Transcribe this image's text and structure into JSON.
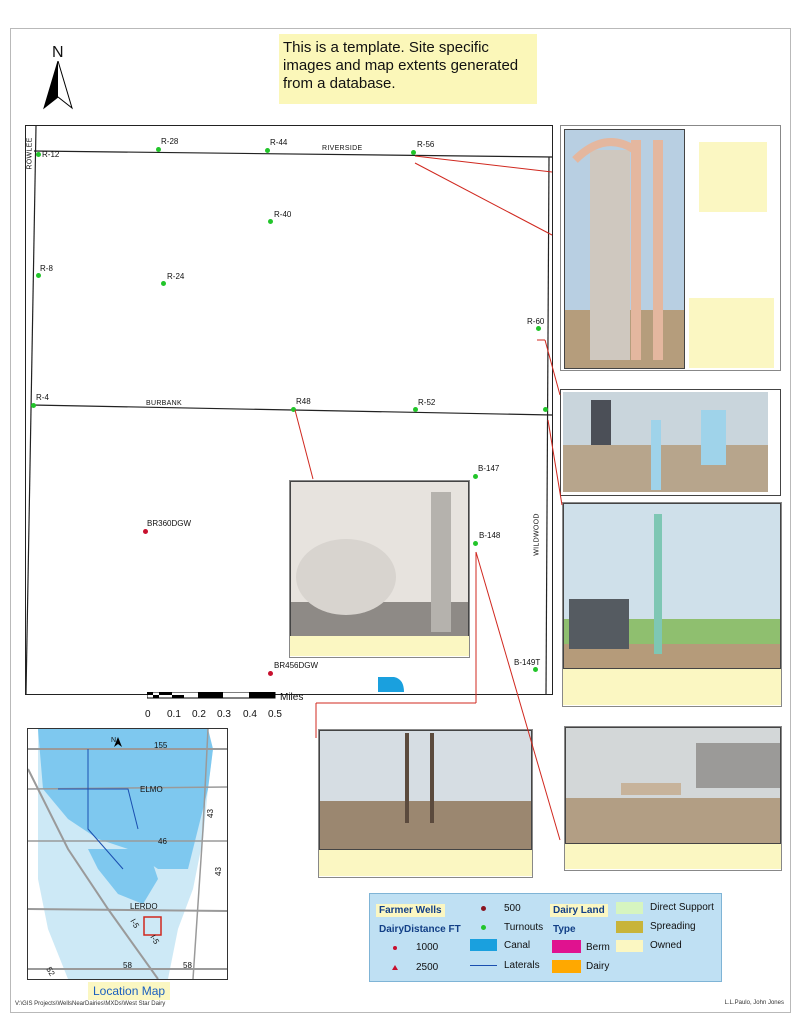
{
  "note": {
    "text": "This is a template. Site specific images and map extents generated from a database."
  },
  "north_arrow": {
    "letter": "N"
  },
  "roads": {
    "riverside": "RIVERSIDE",
    "burbank": "BURBANK",
    "rowlee": "ROWLEE",
    "wildwood": "WILDWOOD"
  },
  "wells": [
    {
      "id": "R-12"
    },
    {
      "id": "R-28"
    },
    {
      "id": "R-44"
    },
    {
      "id": "R-56"
    },
    {
      "id": "R-40"
    },
    {
      "id": "R-8"
    },
    {
      "id": "R-24"
    },
    {
      "id": "R-60"
    },
    {
      "id": "R-4"
    },
    {
      "id": "R48"
    },
    {
      "id": "R-52"
    },
    {
      "id": "B-147"
    },
    {
      "id": "B-148"
    },
    {
      "id": "B-149T"
    },
    {
      "id": "BR360DGW"
    },
    {
      "id": "BR456DGW"
    }
  ],
  "scale": {
    "ticks": [
      "0",
      "0.1",
      "0.2",
      "0.3",
      "0.4",
      "0.5"
    ],
    "unit": "Miles"
  },
  "location_map": {
    "title": "Location Map",
    "north": "N",
    "labels": {
      "r155": "155",
      "elmo": "ELMO",
      "r43a": "43",
      "r46": "46",
      "r43b": "43",
      "lerdo": "LERDO",
      "i5a": "I-5",
      "i5b": "I-5",
      "r58a": "58",
      "r58b": "58",
      "r52": "52"
    }
  },
  "legend": {
    "farmer_wells": "Farmer Wells",
    "dairy_distance": "DairyDistance FT",
    "d1000": "1000",
    "d2500": "2500",
    "d500": "500",
    "turnouts": "Turnouts",
    "canal": "Canal",
    "laterals": "Laterals",
    "dairy_land": "Dairy Land",
    "type": "Type",
    "berm": "Berm",
    "dairy": "Dairy",
    "direct_support": "Direct Support",
    "spreading": "Spreading",
    "owned": "Owned",
    "colors": {
      "red": "#c8102e",
      "green": "#22c52a",
      "canal": "#1aa0de",
      "laterals": "#1a4fb0",
      "berm": "#e0128f",
      "dairy": "#ffa800",
      "direct_support": "#d6f5c0",
      "spreading": "#c8b43a",
      "owned": "#fbf7c2"
    }
  },
  "footer": {
    "left": "V:\\GIS Projects\\WellsNearDairies\\MXDs\\West Star Dairy",
    "right": "L.L.Paulo, John Jones"
  },
  "photos": [
    {
      "name": "standpipe-photo"
    },
    {
      "name": "turnout-valve-photo"
    },
    {
      "name": "pipes-field-photo"
    },
    {
      "name": "tank-truck-photo"
    },
    {
      "name": "field-riser-photo"
    },
    {
      "name": "pipe-yard-photo"
    }
  ]
}
